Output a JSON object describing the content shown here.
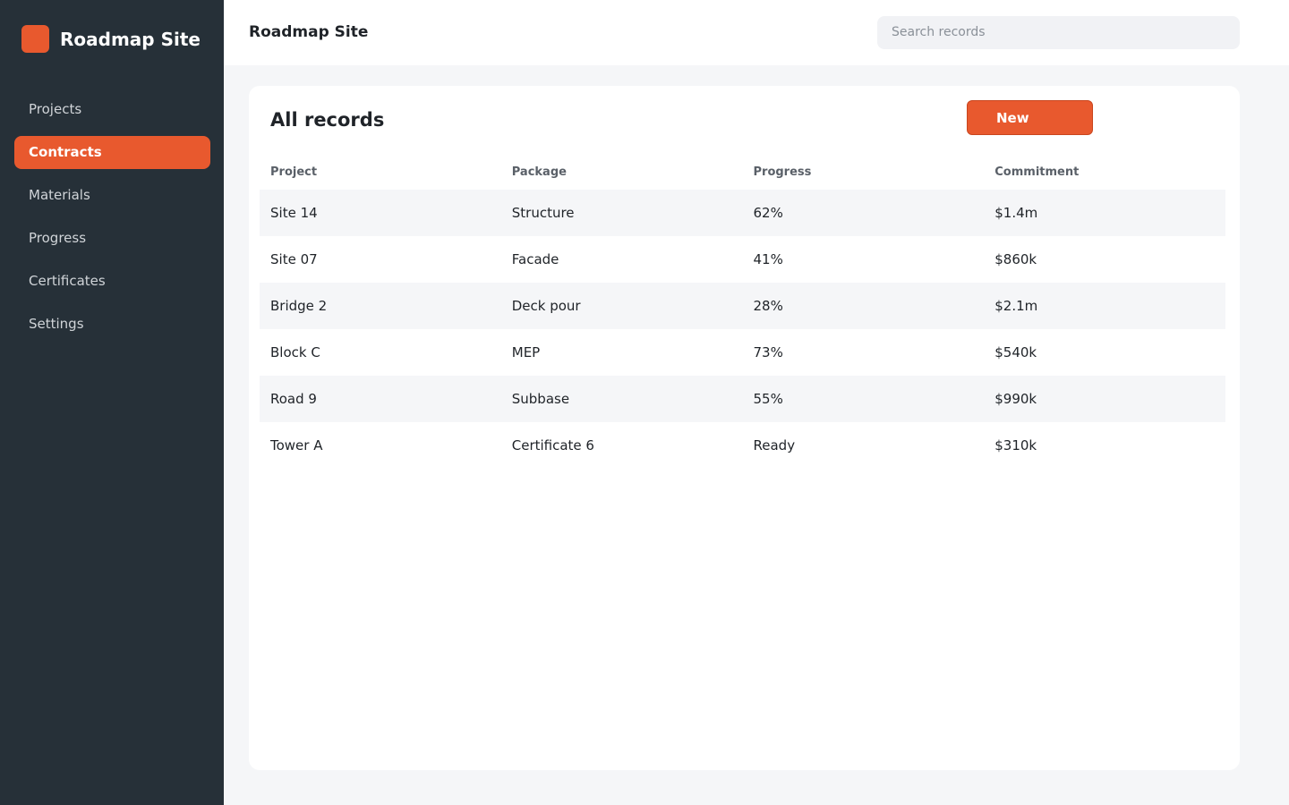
{
  "sidebar": {
    "brand": "Roadmap Site",
    "nav": [
      "Projects",
      "Contracts",
      "Materials",
      "Progress",
      "Certificates",
      "Settings"
    ],
    "active": 1
  },
  "header": {
    "title": "Roadmap Site",
    "search_placeholder": "Search records"
  },
  "panel": {
    "title": "All records",
    "button": "New"
  },
  "table": {
    "columns": [
      "Project",
      "Package",
      "Progress",
      "Commitment"
    ],
    "rows": [
      [
        "Site 14",
        "Structure",
        "62%",
        "$1.4m"
      ],
      [
        "Site 07",
        "Facade",
        "41%",
        "$860k"
      ],
      [
        "Bridge 2",
        "Deck pour",
        "28%",
        "$2.1m"
      ],
      [
        "Block C",
        "MEP",
        "73%",
        "$540k"
      ],
      [
        "Road 9",
        "Subbase",
        "55%",
        "$990k"
      ],
      [
        "Tower A",
        "Certificate 6",
        "Ready",
        "$310k"
      ]
    ]
  }
}
